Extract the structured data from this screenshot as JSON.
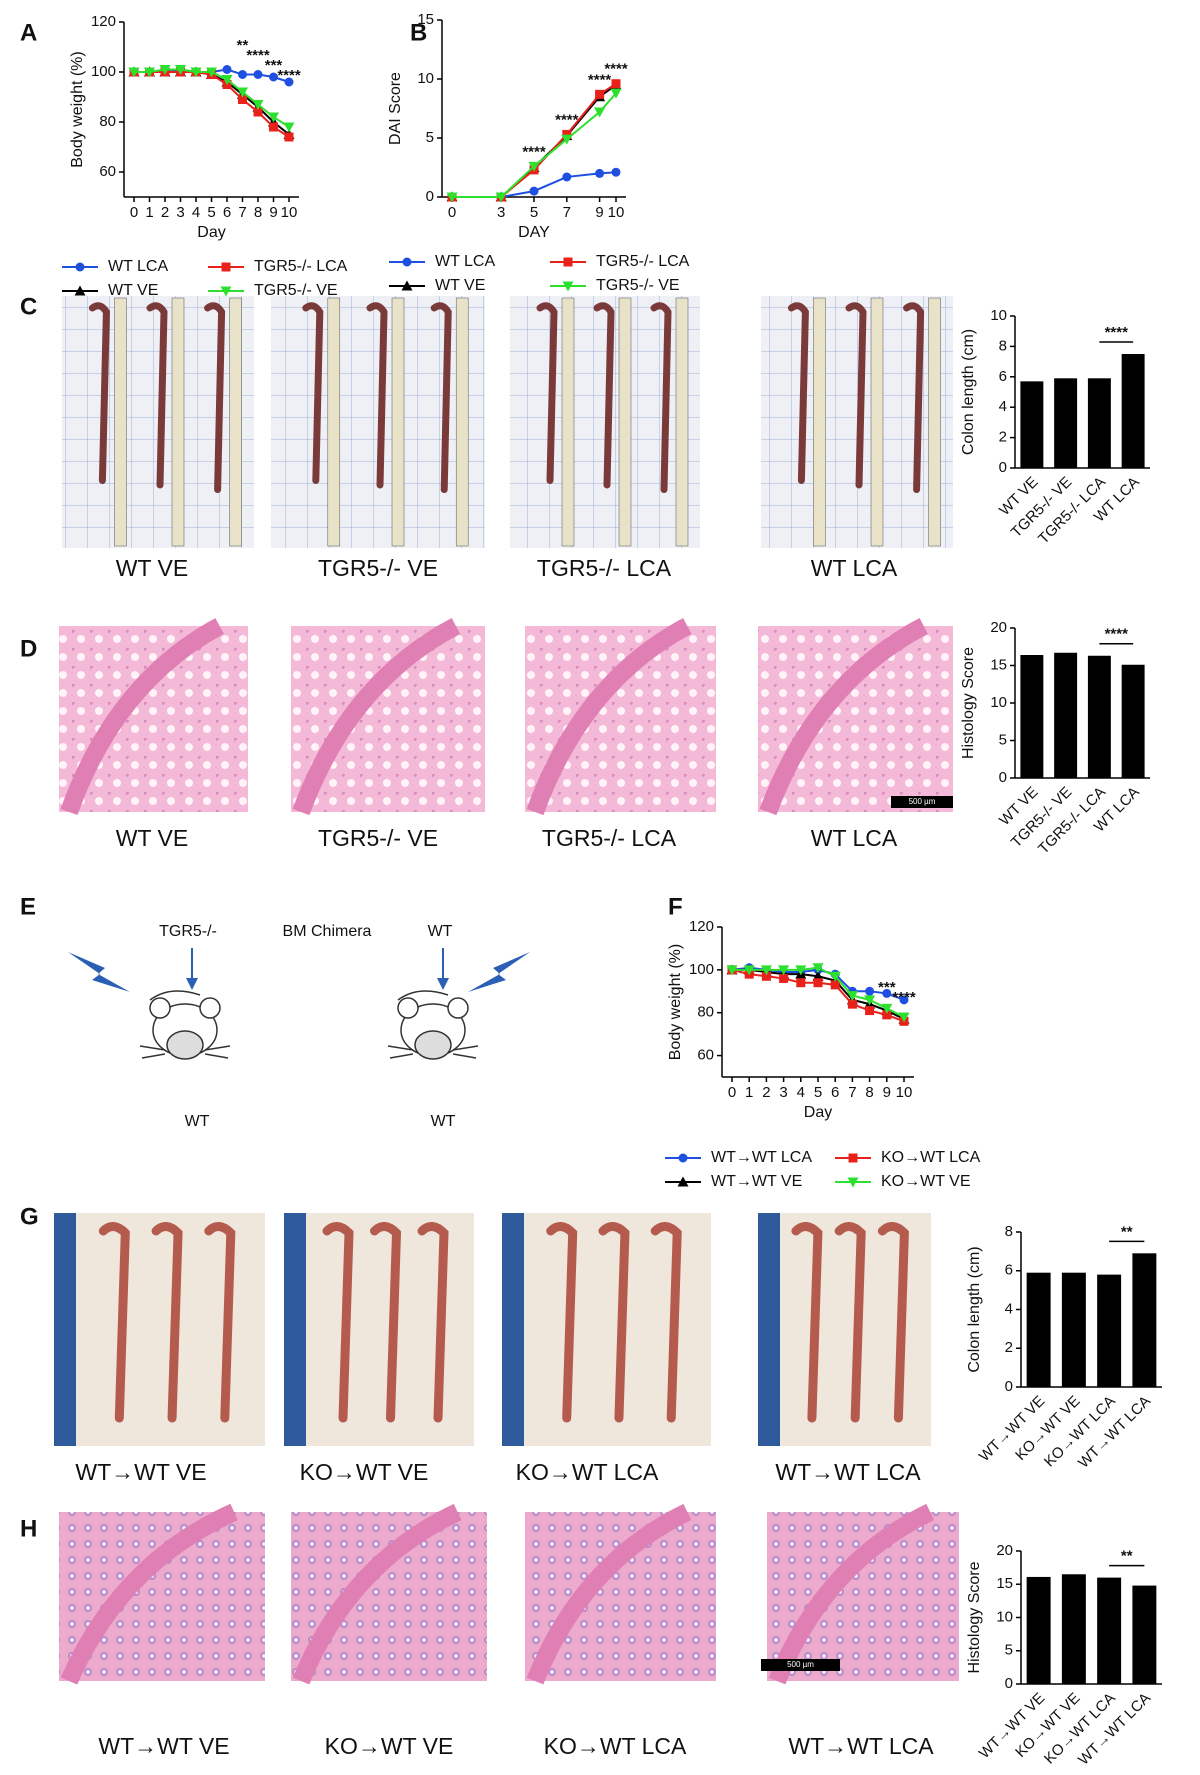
{
  "chart_data": [
    {
      "type": "line",
      "ylabel": "Body weight (%)",
      "xlabel": "Day",
      "x": [
        0,
        1,
        2,
        3,
        4,
        5,
        6,
        7,
        8,
        9,
        10
      ],
      "xlim": [
        0,
        10
      ],
      "xticks": [
        0,
        1,
        2,
        3,
        4,
        5,
        6,
        7,
        8,
        9,
        10
      ],
      "ylim": [
        50,
        120
      ],
      "yticks": [
        60,
        80,
        100,
        120
      ],
      "annotations": [
        "**",
        "****",
        "***",
        "****"
      ],
      "series": [
        {
          "name": "WT LCA",
          "color": "#1f4fe0",
          "marker": "circle",
          "values": [
            100,
            100,
            100,
            101,
            100,
            100,
            101,
            99,
            99,
            98,
            96
          ]
        },
        {
          "name": "WT VE",
          "color": "#000000",
          "marker": "triangle",
          "values": [
            100,
            100,
            100,
            100,
            100,
            99,
            96,
            91,
            86,
            80,
            75
          ]
        },
        {
          "name": "TGR5-/- LCA",
          "color": "#e8211b",
          "marker": "square",
          "values": [
            100,
            100,
            100,
            100,
            100,
            99,
            95,
            89,
            84,
            78,
            74
          ]
        },
        {
          "name": "TGR5-/- VE",
          "color": "#2ee02e",
          "marker": "triangle-down",
          "values": [
            100,
            100,
            101,
            101,
            100,
            100,
            97,
            92,
            87,
            82,
            78
          ]
        }
      ]
    },
    {
      "type": "line",
      "ylabel": "DAI Score",
      "xlabel": "DAY",
      "x": [
        0,
        3,
        5,
        7,
        9,
        10
      ],
      "xlim": [
        0,
        10
      ],
      "xticks": [
        0,
        3,
        5,
        7,
        9,
        10
      ],
      "ylim": [
        0,
        15
      ],
      "yticks": [
        0,
        5,
        10,
        15
      ],
      "annotations": [
        "****",
        "****",
        "****",
        "****"
      ],
      "series": [
        {
          "name": "WT LCA",
          "color": "#1f4fe0",
          "marker": "circle",
          "values": [
            0,
            0,
            0.5,
            1.7,
            2,
            2.1
          ]
        },
        {
          "name": "WT VE",
          "color": "#000000",
          "marker": "triangle",
          "values": [
            0,
            0,
            2.5,
            5.2,
            8.5,
            9.5
          ]
        },
        {
          "name": "TGR5-/- LCA",
          "color": "#e8211b",
          "marker": "square",
          "values": [
            0,
            0,
            2.3,
            5.3,
            8.7,
            9.6
          ]
        },
        {
          "name": "TGR5-/- VE",
          "color": "#2ee02e",
          "marker": "triangle-down",
          "values": [
            0,
            0,
            2.6,
            4.9,
            7.2,
            8.8
          ]
        }
      ]
    },
    {
      "type": "bar",
      "ylabel": "Colon length (cm)",
      "color": "#000000",
      "categories": [
        "WT VE",
        "TGR5-/- VE",
        "TGR5-/- LCA",
        "WT LCA"
      ],
      "values": [
        5.7,
        5.9,
        5.9,
        7.5
      ],
      "ylim": [
        0,
        10
      ],
      "yticks": [
        0,
        2,
        4,
        6,
        8,
        10
      ],
      "annotations": [
        "****"
      ]
    },
    {
      "type": "bar",
      "ylabel": "Histology Score",
      "color": "#000000",
      "categories": [
        "WT VE",
        "TGR5-/- VE",
        "TGR5-/- LCA",
        "WT LCA"
      ],
      "values": [
        16.4,
        16.7,
        16.3,
        15.1
      ],
      "ylim": [
        0,
        20
      ],
      "yticks": [
        0,
        5,
        10,
        15,
        20
      ],
      "annotations": [
        "****"
      ]
    },
    {
      "type": "line",
      "ylabel": "Body weight (%)",
      "xlabel": "Day",
      "x": [
        0,
        1,
        2,
        3,
        4,
        5,
        6,
        7,
        8,
        9,
        10
      ],
      "xlim": [
        0,
        10
      ],
      "xticks": [
        0,
        1,
        2,
        3,
        4,
        5,
        6,
        7,
        8,
        9,
        10
      ],
      "ylim": [
        50,
        120
      ],
      "yticks": [
        60,
        80,
        100,
        120
      ],
      "annotations": [
        "***",
        "****"
      ],
      "series": [
        {
          "name": "WT→WT LCA",
          "color": "#1f4fe0",
          "marker": "circle",
          "values": [
            100,
            101,
            100,
            99,
            99,
            100,
            98,
            90,
            90,
            89,
            86
          ]
        },
        {
          "name": "WT→WT VE",
          "color": "#000000",
          "marker": "triangle",
          "values": [
            100,
            100,
            99,
            98,
            98,
            97,
            95,
            86,
            84,
            81,
            77
          ]
        },
        {
          "name": "KO→WT LCA",
          "color": "#e8211b",
          "marker": "square",
          "values": [
            100,
            98,
            97,
            96,
            94,
            94,
            93,
            84,
            81,
            79,
            76
          ]
        },
        {
          "name": "KO→WT VE",
          "color": "#2ee02e",
          "marker": "triangle-down",
          "values": [
            100,
            100,
            100,
            100,
            100,
            101,
            97,
            88,
            86,
            82,
            78
          ]
        }
      ]
    },
    {
      "type": "bar",
      "ylabel": "Colon length (cm)",
      "color": "#000000",
      "categories": [
        "WT→WT VE",
        "KO→WT VE",
        "KO→WT LCA",
        "WT→WT LCA"
      ],
      "values": [
        5.9,
        5.9,
        5.8,
        6.9
      ],
      "ylim": [
        0,
        8
      ],
      "yticks": [
        0,
        2,
        4,
        6,
        8
      ],
      "annotations": [
        "**"
      ]
    },
    {
      "type": "bar",
      "ylabel": "Histology Score",
      "color": "#000000",
      "categories": [
        "WT→WT VE",
        "KO→WT VE",
        "KO→WT LCA",
        "WT→WT LCA"
      ],
      "values": [
        16.1,
        16.5,
        16,
        14.8
      ],
      "ylim": [
        0,
        20
      ],
      "yticks": [
        0,
        5,
        10,
        15,
        20
      ],
      "annotations": [
        "**"
      ]
    }
  ],
  "figure": {
    "panel_labels": [
      "A",
      "B",
      "C",
      "D",
      "E",
      "F",
      "G",
      "H"
    ],
    "captions": {
      "C": [
        "WT VE",
        "TGR5-/- VE",
        "TGR5-/- LCA",
        "WT LCA"
      ],
      "D": [
        "WT VE",
        "TGR5-/- VE",
        "TGR5-/- LCA",
        "WT LCA"
      ],
      "G": [
        "WT→WT VE",
        "KO→WT VE",
        "KO→WT LCA",
        "WT→WT LCA"
      ],
      "H": [
        "WT→WT VE",
        "KO→WT VE",
        "KO→WT LCA",
        "WT→WT LCA"
      ]
    },
    "scale_bars": [
      "500 µm",
      "500 µm"
    ],
    "schematic": {
      "left_donor": "TGR5-/-",
      "center": "BM Chimera",
      "right_donor": "WT",
      "left_recipient": "WT",
      "right_recipient": "WT"
    }
  }
}
